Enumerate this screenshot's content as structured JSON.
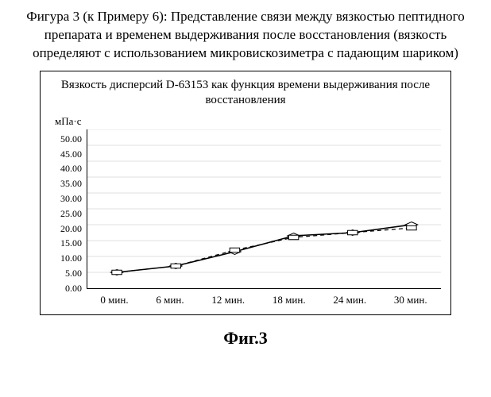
{
  "caption": "Фигура 3 (к Примеру 6): Представление связи между вязкостью пептидного препарата и временем выдерживания после восстановления (вязкость определяют с использованием микровискозиметра с падающим шариком)",
  "figure_label": "Фиг.3",
  "chart": {
    "type": "line",
    "title": "Вязкость дисперсий D-63153 как функция времени выдерживания после восстановления",
    "ylabel": "мПа·с",
    "background_color": "#ffffff",
    "grid_color": "#b0b0b0",
    "axis_color": "#000000",
    "title_fontsize": 15,
    "label_fontsize": 13,
    "tick_fontsize": 12,
    "ylim": [
      0,
      50
    ],
    "ytick_step": 5,
    "yticks": [
      "50.00",
      "45.00",
      "40.00",
      "35.00",
      "30.00",
      "25.00",
      "20.00",
      "15.00",
      "10.00",
      "5.00",
      "0.00"
    ],
    "x_categories": [
      "0 мин.",
      "6 мин.",
      "12 мин.",
      "18 мин.",
      "24 мин.",
      "30 мин."
    ],
    "series": [
      {
        "name": "series-1",
        "values": [
          5.0,
          7.0,
          11.5,
          16.5,
          17.5,
          20.0
        ],
        "line_color": "#000000",
        "line_width": 1.6,
        "dash": "",
        "marker": "diamond",
        "marker_size": 5,
        "marker_color": "#000000"
      },
      {
        "name": "series-2",
        "values": [
          5.0,
          7.0,
          12.0,
          16.0,
          17.5,
          19.0
        ],
        "line_color": "#000000",
        "line_width": 1.2,
        "dash": "5,4",
        "marker": "square",
        "marker_size": 5,
        "marker_color": "#000000"
      }
    ]
  }
}
